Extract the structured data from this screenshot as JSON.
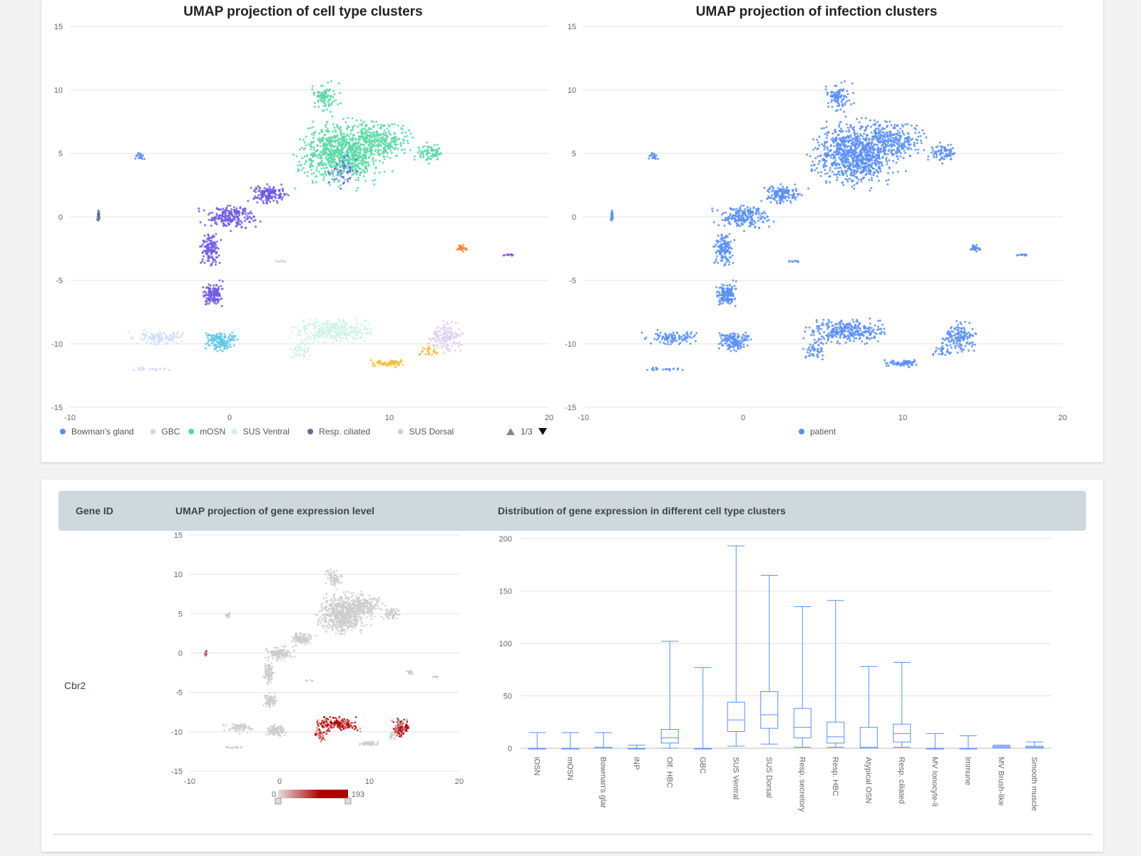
{
  "cluster_chart": {
    "chart_data": {
      "type": "scatter",
      "title": "UMAP projection of cell type clusters",
      "xlim": [
        -10,
        20
      ],
      "ylim": [
        -15,
        15
      ],
      "xticks": [
        -10,
        0,
        10,
        20
      ],
      "yticks": [
        15,
        10,
        5,
        0,
        -5,
        -10,
        -15
      ],
      "legend": [
        {
          "label": "Bowman's gland",
          "color": "#5b8ff9"
        },
        {
          "label": "GBC",
          "color": "#cddcfb"
        },
        {
          "label": "mOSN",
          "color": "#5ad8a6"
        },
        {
          "label": "SUS Ventral",
          "color": "#cdf3e4"
        },
        {
          "label": "Resp. ciliated",
          "color": "#5d7092"
        },
        {
          "label": "SUS Dorsal",
          "color": "#ced4de"
        }
      ],
      "pager": "1/3"
    }
  },
  "infection_chart": {
    "chart_data": {
      "type": "scatter",
      "title": "UMAP projection of infection clusters",
      "xlim": [
        -10,
        20
      ],
      "ylim": [
        -15,
        15
      ],
      "xticks": [
        -10,
        0,
        10,
        20
      ],
      "yticks": [
        15,
        10,
        5,
        0,
        -5,
        -10,
        -15
      ],
      "legend": [
        {
          "label": "patient",
          "color": "#5b8ff9"
        }
      ]
    }
  },
  "table": {
    "headers": {
      "gene_id": "Gene ID",
      "umap": "UMAP projection of gene expression level",
      "distribution": "Distribution of gene expression in different cell type clusters"
    },
    "gene": "Cbr2"
  },
  "expression_chart": {
    "chart_data": {
      "type": "scatter",
      "xlim": [
        -10,
        20
      ],
      "ylim": [
        -15,
        15
      ],
      "xticks": [
        -10,
        0,
        10,
        20
      ],
      "yticks": [
        15,
        10,
        5,
        0,
        -5,
        -10,
        -15
      ],
      "colorbar": {
        "min": "0",
        "max": "193",
        "low_color": "#e0e0e0",
        "high_color": "#b00000"
      }
    }
  },
  "box_chart": {
    "chart_data": {
      "type": "box",
      "ylim": [
        0,
        200
      ],
      "yticks": [
        0,
        50,
        100,
        150,
        200
      ],
      "categories": [
        "iOSN",
        "mOSN",
        "Bowman's glar",
        "INP",
        "Olf. HBC",
        "GBC",
        "SUS Ventral",
        "SUS Dorsal",
        "Resp. secretory",
        "Resp. HBC",
        "Atypical OSN",
        "Resp. ciliated",
        "MV Ionocyte-li",
        "Immune",
        "MV Brush-like",
        "Smooth muscle"
      ],
      "boxes": [
        {
          "min": 0,
          "q1": 0,
          "median": 0,
          "q3": 0,
          "max": 15
        },
        {
          "min": 0,
          "q1": 0,
          "median": 0,
          "q3": 0,
          "max": 15
        },
        {
          "min": 0,
          "q1": 0,
          "median": 0,
          "q3": 1,
          "max": 15
        },
        {
          "min": 0,
          "q1": 0,
          "median": 0,
          "q3": 0,
          "max": 3
        },
        {
          "min": 0,
          "q1": 5,
          "median": 10,
          "q3": 18,
          "max": 102
        },
        {
          "min": 0,
          "q1": 0,
          "median": 0,
          "q3": 0,
          "max": 77
        },
        {
          "min": 2,
          "q1": 16,
          "median": 27,
          "q3": 44,
          "max": 193
        },
        {
          "min": 4,
          "q1": 19,
          "median": 32,
          "q3": 54,
          "max": 165
        },
        {
          "min": 1,
          "q1": 10,
          "median": 20,
          "q3": 38,
          "max": 135
        },
        {
          "min": 1,
          "q1": 5,
          "median": 11,
          "q3": 25,
          "max": 141
        },
        {
          "min": 0,
          "q1": 0,
          "median": 1,
          "q3": 20,
          "max": 78
        },
        {
          "min": 1,
          "q1": 6,
          "median": 14,
          "q3": 23,
          "max": 82
        },
        {
          "min": 0,
          "q1": 0,
          "median": 0,
          "q3": 0,
          "max": 14
        },
        {
          "min": 0,
          "q1": 0,
          "median": 0,
          "q3": 0,
          "max": 12
        },
        {
          "min": 0,
          "q1": 0,
          "median": 1,
          "q3": 2,
          "max": 3
        },
        {
          "min": 0,
          "q1": 0,
          "median": 1,
          "q3": 2,
          "max": 6
        }
      ]
    }
  }
}
